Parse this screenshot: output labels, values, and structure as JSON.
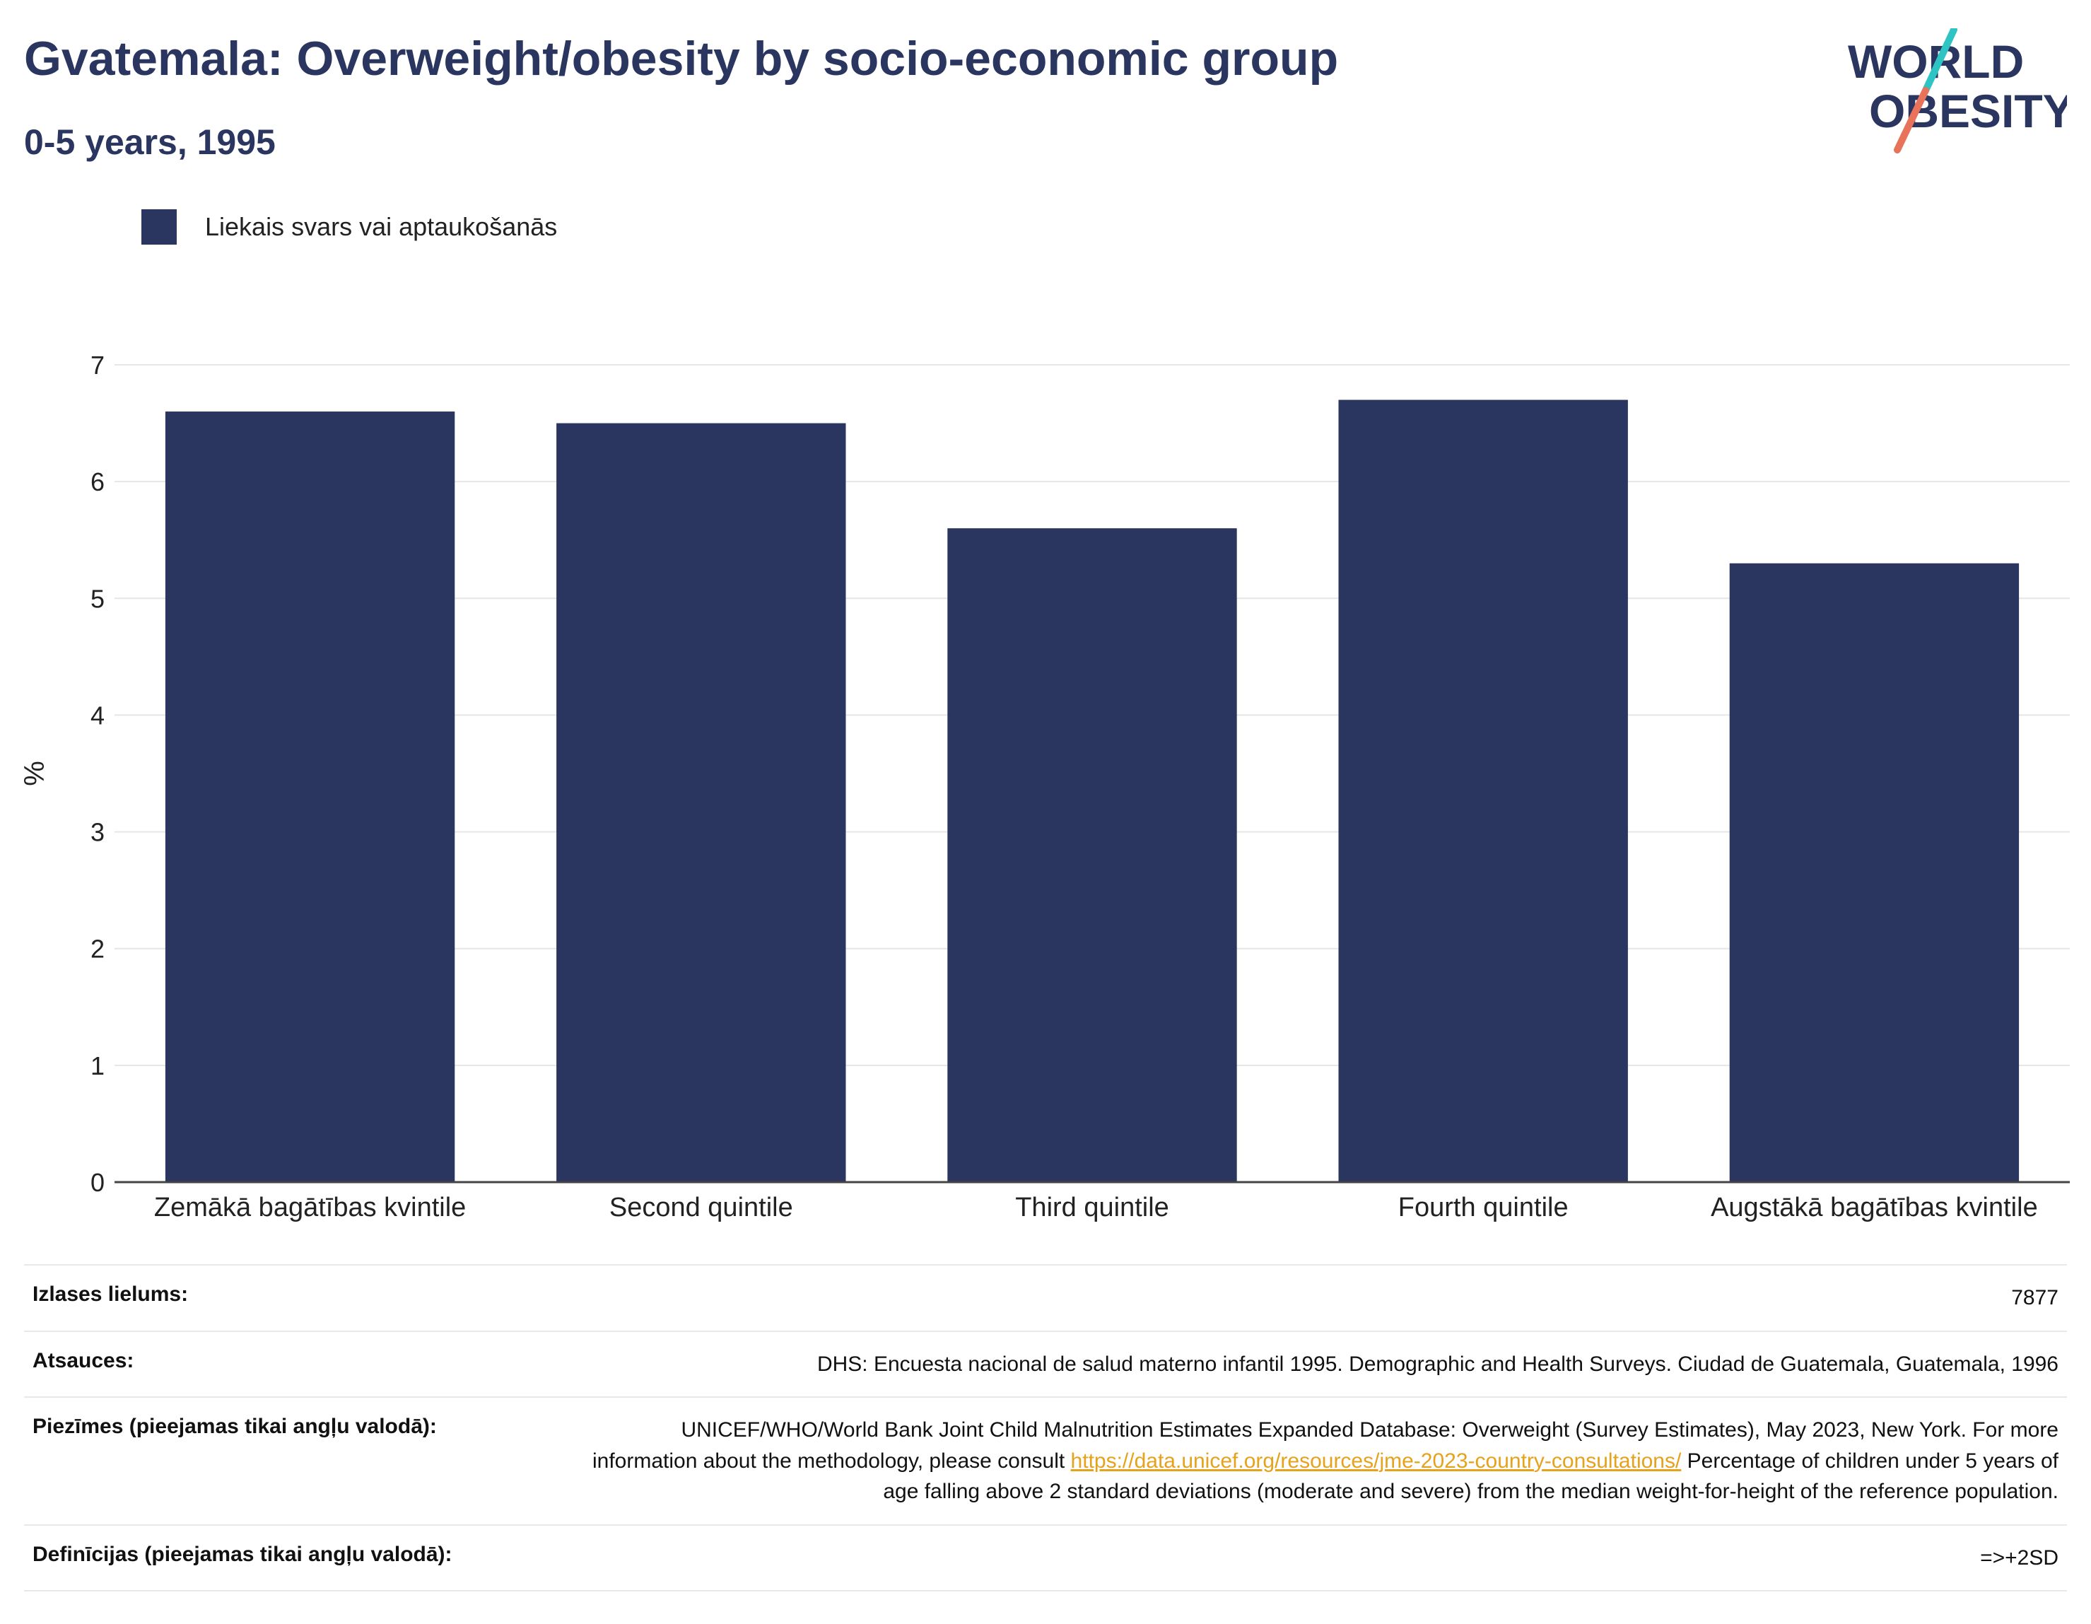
{
  "header": {
    "title": "Gvatemala: Overweight/obesity by socio-economic group",
    "subtitle": "0-5 years, 1995"
  },
  "logo": {
    "line1": "WORLD",
    "line2": "OBESITY",
    "accent_colors": [
      "#2ec4c4",
      "#e8735a"
    ]
  },
  "legend": {
    "label": "Liekais svars vai aptaukošanās",
    "color": "#2a3560"
  },
  "chart_data": {
    "type": "bar",
    "categories": [
      "Zemākā bagātības kvintile",
      "Second quintile",
      "Third quintile",
      "Fourth quintile",
      "Augstākā bagātības kvintile"
    ],
    "series": [
      {
        "name": "Liekais svars vai aptaukošanās",
        "values": [
          6.6,
          6.5,
          5.6,
          6.7,
          5.3
        ],
        "color": "#2a3560"
      }
    ],
    "ylabel": "%",
    "ylim": [
      0,
      7
    ],
    "yticks": [
      0,
      1,
      2,
      3,
      4,
      5,
      6,
      7
    ],
    "grid": true,
    "legend_position": "top-left"
  },
  "meta": {
    "sample_size_label": "Izlases lielums:",
    "sample_size_value": "7877",
    "references_label": "Atsauces:",
    "references_value": "DHS: Encuesta nacional de salud materno infantil 1995. Demographic and Health Surveys. Ciudad de Guatemala, Guatemala, 1996",
    "notes_label": "Piezīmes (pieejamas tikai angļu valodā):",
    "notes_text1": "UNICEF/WHO/World Bank Joint Child Malnutrition Estimates Expanded Database: Overweight (Survey Estimates), May 2023, New York. For more information about the methodology, please consult ",
    "notes_link": "https://data.unicef.org/resources/jme-2023-country-consultations/",
    "notes_text2": " Percentage of children under 5 years of age falling above 2 standard deviations (moderate and severe) from the median weight-for-height of the reference population.",
    "definitions_label": "Definīcijas (pieejamas tikai angļu valodā):",
    "definitions_value": "=>+2SD"
  }
}
